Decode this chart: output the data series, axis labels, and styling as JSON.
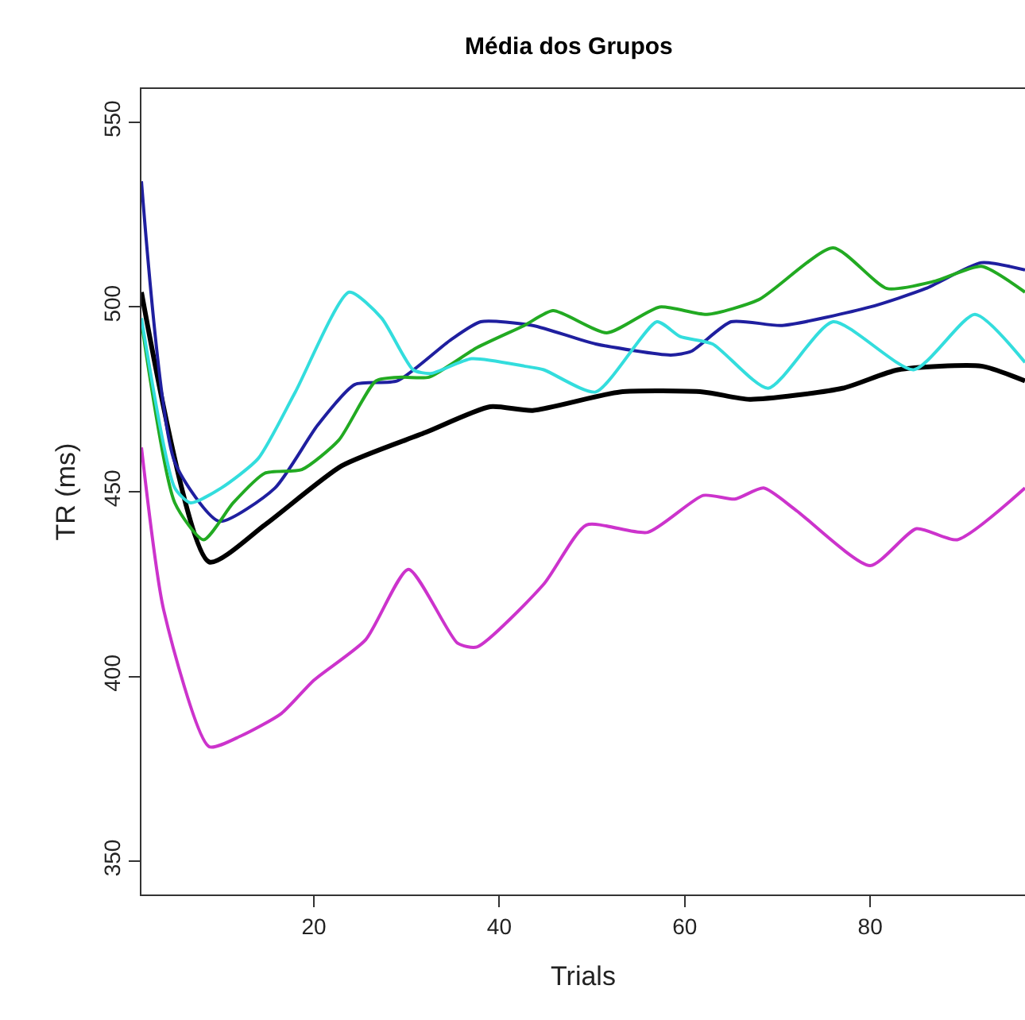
{
  "chart_data": {
    "type": "line",
    "title": "Média dos Grupos",
    "xlabel": "Trials",
    "ylabel": "TR (ms)",
    "xlim": [
      1.4,
      96.7
    ],
    "ylim": [
      341,
      559
    ],
    "xticks": [
      20,
      40,
      60,
      80
    ],
    "yticks": [
      350,
      400,
      450,
      500,
      550
    ],
    "marker": "none",
    "line_style": "solid",
    "series": [
      {
        "color": "#000000",
        "x": [
          1.4,
          8.7,
          14.7,
          23,
          32,
          39,
          43.6,
          53,
          62,
          67,
          77,
          83,
          92,
          96.7
        ],
        "values": [
          504,
          431,
          441,
          457,
          466,
          473,
          472,
          477,
          477,
          475,
          478,
          483,
          484,
          480
        ]
      },
      {
        "color": "#1f1f9f",
        "x": [
          1.4,
          5,
          9.8,
          15.8,
          20.4,
          24.4,
          29,
          34.7,
          38,
          43.6,
          50.4,
          58.5,
          60.7,
          65,
          70.5,
          80,
          86,
          92,
          96.7
        ],
        "values": [
          534,
          458,
          442,
          451,
          468,
          479,
          480,
          491,
          496,
          495,
          490,
          487,
          488,
          496,
          495,
          500,
          505,
          512,
          510
        ]
      },
      {
        "color": "#22aa22",
        "x": [
          1.4,
          5,
          8.1,
          11.3,
          14.7,
          18.7,
          22.7,
          26.7,
          29.5,
          32.4,
          37.6,
          42.7,
          45.8,
          51.6,
          57.3,
          62.4,
          68,
          76,
          81.8,
          87,
          92,
          96.7
        ],
        "values": [
          496,
          447,
          437,
          447,
          455,
          456,
          464,
          480,
          481,
          481,
          489,
          495,
          499,
          493,
          500,
          498,
          502,
          516,
          505,
          507,
          511,
          504
        ]
      },
      {
        "color": "#33dddd",
        "x": [
          1.4,
          5,
          6.7,
          10,
          14,
          18,
          23.8,
          27.3,
          30.7,
          32.6,
          37,
          42.7,
          44.8,
          50.4,
          57,
          59.5,
          63,
          69,
          76,
          84.7,
          91.3,
          96.7
        ],
        "values": [
          497,
          451,
          447,
          451,
          459,
          477,
          504,
          497,
          483,
          482,
          486,
          484,
          483,
          477,
          496,
          492,
          490,
          478,
          496,
          483,
          498,
          485
        ]
      },
      {
        "color": "#cc33cc",
        "x": [
          1.4,
          3.8,
          8.7,
          12.2,
          16.5,
          20,
          25.6,
          30.2,
          35.5,
          37.6,
          44.8,
          49.4,
          56,
          62,
          65.4,
          68.5,
          72,
          80,
          85,
          89.4,
          96.7
        ],
        "values": [
          462,
          418,
          381,
          384,
          390,
          399,
          410,
          429,
          409,
          408,
          425,
          441,
          439,
          449,
          448,
          451,
          445,
          430,
          440,
          437,
          451
        ]
      }
    ]
  }
}
